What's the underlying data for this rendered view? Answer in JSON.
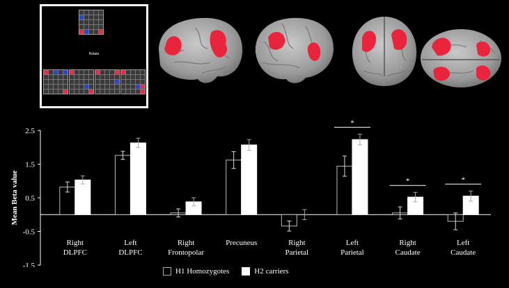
{
  "stimulus": {
    "label": "Rotate",
    "target": [
      "g",
      "g",
      "g",
      "g",
      "g",
      "b",
      "g",
      "g",
      "g",
      "g",
      "g",
      "g",
      "g",
      "g",
      "g",
      "g",
      "g",
      "g",
      "g",
      "g",
      "r",
      "b",
      "g",
      "g",
      "r"
    ],
    "options": [
      [
        "r",
        "g",
        "b",
        "g",
        "b",
        "g",
        "g",
        "g",
        "g",
        "g",
        "g",
        "g",
        "g",
        "g",
        "g",
        "g",
        "g",
        "g",
        "g",
        "g",
        "g",
        "g",
        "g",
        "g",
        "r"
      ],
      [
        "r",
        "g",
        "g",
        "g",
        "g",
        "g",
        "g",
        "g",
        "g",
        "g",
        "g",
        "g",
        "g",
        "g",
        "g",
        "g",
        "g",
        "g",
        "b",
        "g",
        "g",
        "g",
        "g",
        "g",
        "r"
      ],
      [
        "r",
        "g",
        "g",
        "g",
        "r",
        "g",
        "g",
        "g",
        "g",
        "g",
        "g",
        "g",
        "g",
        "g",
        "b",
        "g",
        "g",
        "g",
        "g",
        "g",
        "g",
        "g",
        "g",
        "g",
        "g"
      ],
      [
        "r",
        "g",
        "g",
        "g",
        "g",
        "g",
        "g",
        "g",
        "g",
        "g",
        "g",
        "g",
        "g",
        "g",
        "g",
        "g",
        "g",
        "g",
        "b",
        "r",
        "g",
        "g",
        "g",
        "g",
        "r"
      ]
    ]
  },
  "brain_views": [
    "left-lateral",
    "right-lateral",
    "posterior",
    "dorsal"
  ],
  "colors": {
    "activation": "#e8253c",
    "brain": "#a7a7a7",
    "h1": "#000000",
    "h2": "#ffffff"
  },
  "chart_data": {
    "type": "bar",
    "ylabel": "Mean Beta value",
    "ylim": [
      -1.5,
      2.5
    ],
    "yticks": [
      "2.5",
      "1.5",
      "0.5",
      "-0.5",
      "-1.5"
    ],
    "ytick_values": [
      2.5,
      1.5,
      0.5,
      -0.5,
      -1.5
    ],
    "categories": [
      [
        "Right",
        "DLPFC"
      ],
      [
        "Left",
        "DLPFC"
      ],
      [
        "Right",
        "Frontopolar"
      ],
      [
        "Precuneus"
      ],
      [
        "Right",
        "Parietal"
      ],
      [
        "Left",
        "Parietal"
      ],
      [
        "Right",
        "Caudate"
      ],
      [
        "Left",
        "Caudate"
      ]
    ],
    "series": [
      {
        "name": "H1 Homozygotes",
        "values": [
          0.82,
          1.76,
          0.05,
          1.62,
          -0.34,
          1.44,
          0.05,
          -0.2
        ],
        "errors": [
          0.15,
          0.12,
          0.12,
          0.25,
          0.15,
          0.3,
          0.18,
          0.25
        ]
      },
      {
        "name": "H2 carriers",
        "values": [
          1.03,
          2.13,
          0.38,
          2.07,
          0.0,
          2.23,
          0.52,
          0.55
        ],
        "errors": [
          0.12,
          0.14,
          0.12,
          0.16,
          0.15,
          0.16,
          0.14,
          0.15
        ]
      }
    ],
    "significance": [
      "",
      "",
      "",
      "",
      "",
      "*",
      "*",
      "*"
    ],
    "legend_position": "bottom"
  }
}
